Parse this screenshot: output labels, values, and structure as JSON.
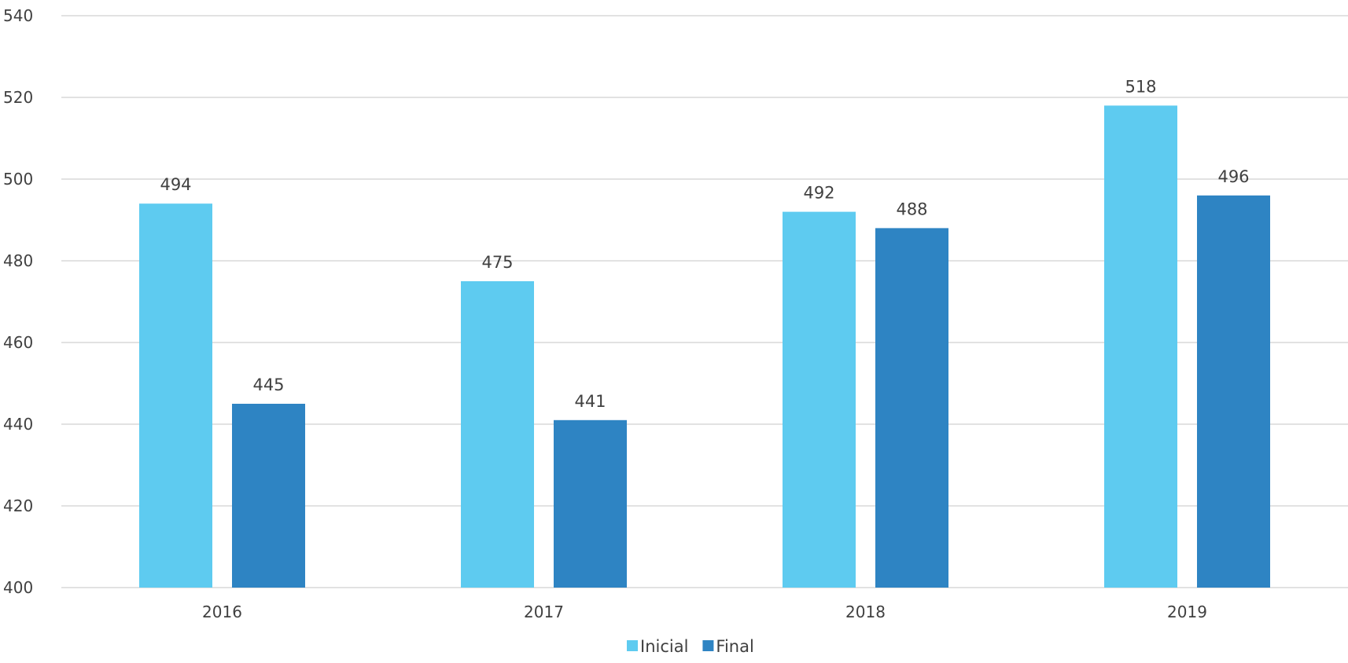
{
  "chart_data": {
    "type": "bar",
    "categories": [
      "2016",
      "2017",
      "2018",
      "2019"
    ],
    "series": [
      {
        "name": "Inicial",
        "color": "#5ecbf0",
        "values": [
          494,
          475,
          492,
          518
        ]
      },
      {
        "name": "Final",
        "color": "#2e84c3",
        "values": [
          445,
          441,
          488,
          496
        ]
      }
    ],
    "ylim": [
      400,
      540
    ],
    "yticks": [
      400,
      420,
      440,
      460,
      480,
      500,
      520,
      540
    ],
    "grid": true,
    "legend": "bottom-center",
    "data_labels": true
  }
}
